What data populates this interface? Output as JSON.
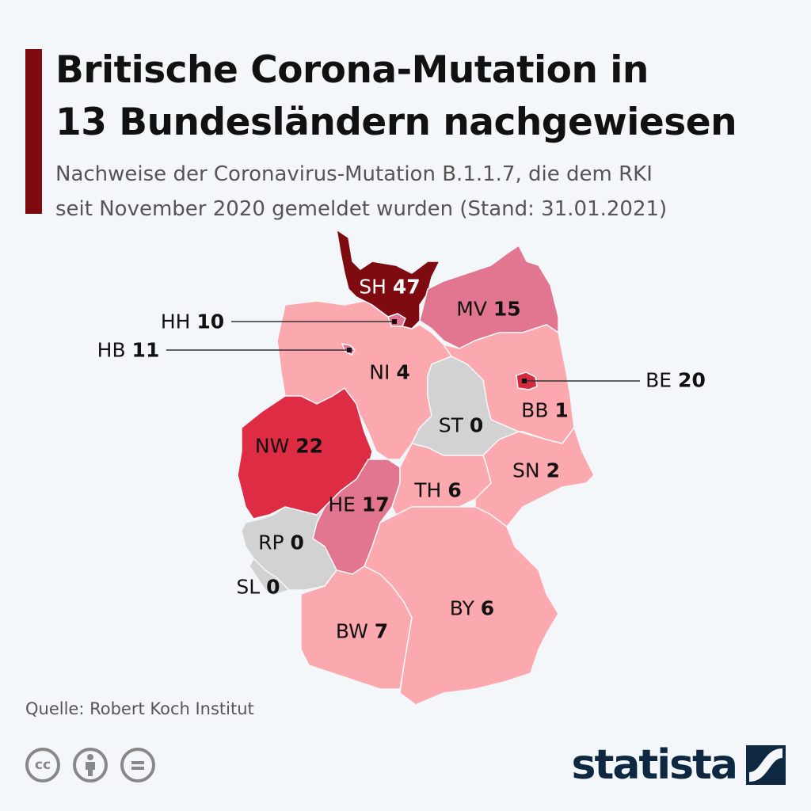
{
  "header": {
    "title_line1": "Britische Corona-Mutation in",
    "title_line2": "13 Bundesländern nachgewiesen",
    "subtitle_line1": "Nachweise der Coronavirus-Mutation B.1.1.7, die dem RKI",
    "subtitle_line2": "seit November 2020 gemeldet wurden (Stand: 31.01.2021)"
  },
  "colors": {
    "accent": "#7e0b10",
    "level_0": "#d2d2d2",
    "level_low": "#fba8ae",
    "level_mid": "#e27590",
    "level_high": "#dd2c43",
    "level_top": "#7e0b10"
  },
  "states": [
    {
      "code": "SH",
      "value": "47"
    },
    {
      "code": "MV",
      "value": "15"
    },
    {
      "code": "HH",
      "value": "10"
    },
    {
      "code": "HB",
      "value": "11"
    },
    {
      "code": "NI",
      "value": "4"
    },
    {
      "code": "BE",
      "value": "20"
    },
    {
      "code": "BB",
      "value": "1"
    },
    {
      "code": "ST",
      "value": "0"
    },
    {
      "code": "NW",
      "value": "22"
    },
    {
      "code": "SN",
      "value": "2"
    },
    {
      "code": "TH",
      "value": "6"
    },
    {
      "code": "HE",
      "value": "17"
    },
    {
      "code": "RP",
      "value": "0"
    },
    {
      "code": "SL",
      "value": "0"
    },
    {
      "code": "BY",
      "value": "6"
    },
    {
      "code": "BW",
      "value": "7"
    }
  ],
  "footer": {
    "source": "Quelle: Robert Koch Institut",
    "license_icons": [
      "cc-icon",
      "attribution-icon",
      "no-derivatives-icon"
    ],
    "brand": "statista"
  }
}
